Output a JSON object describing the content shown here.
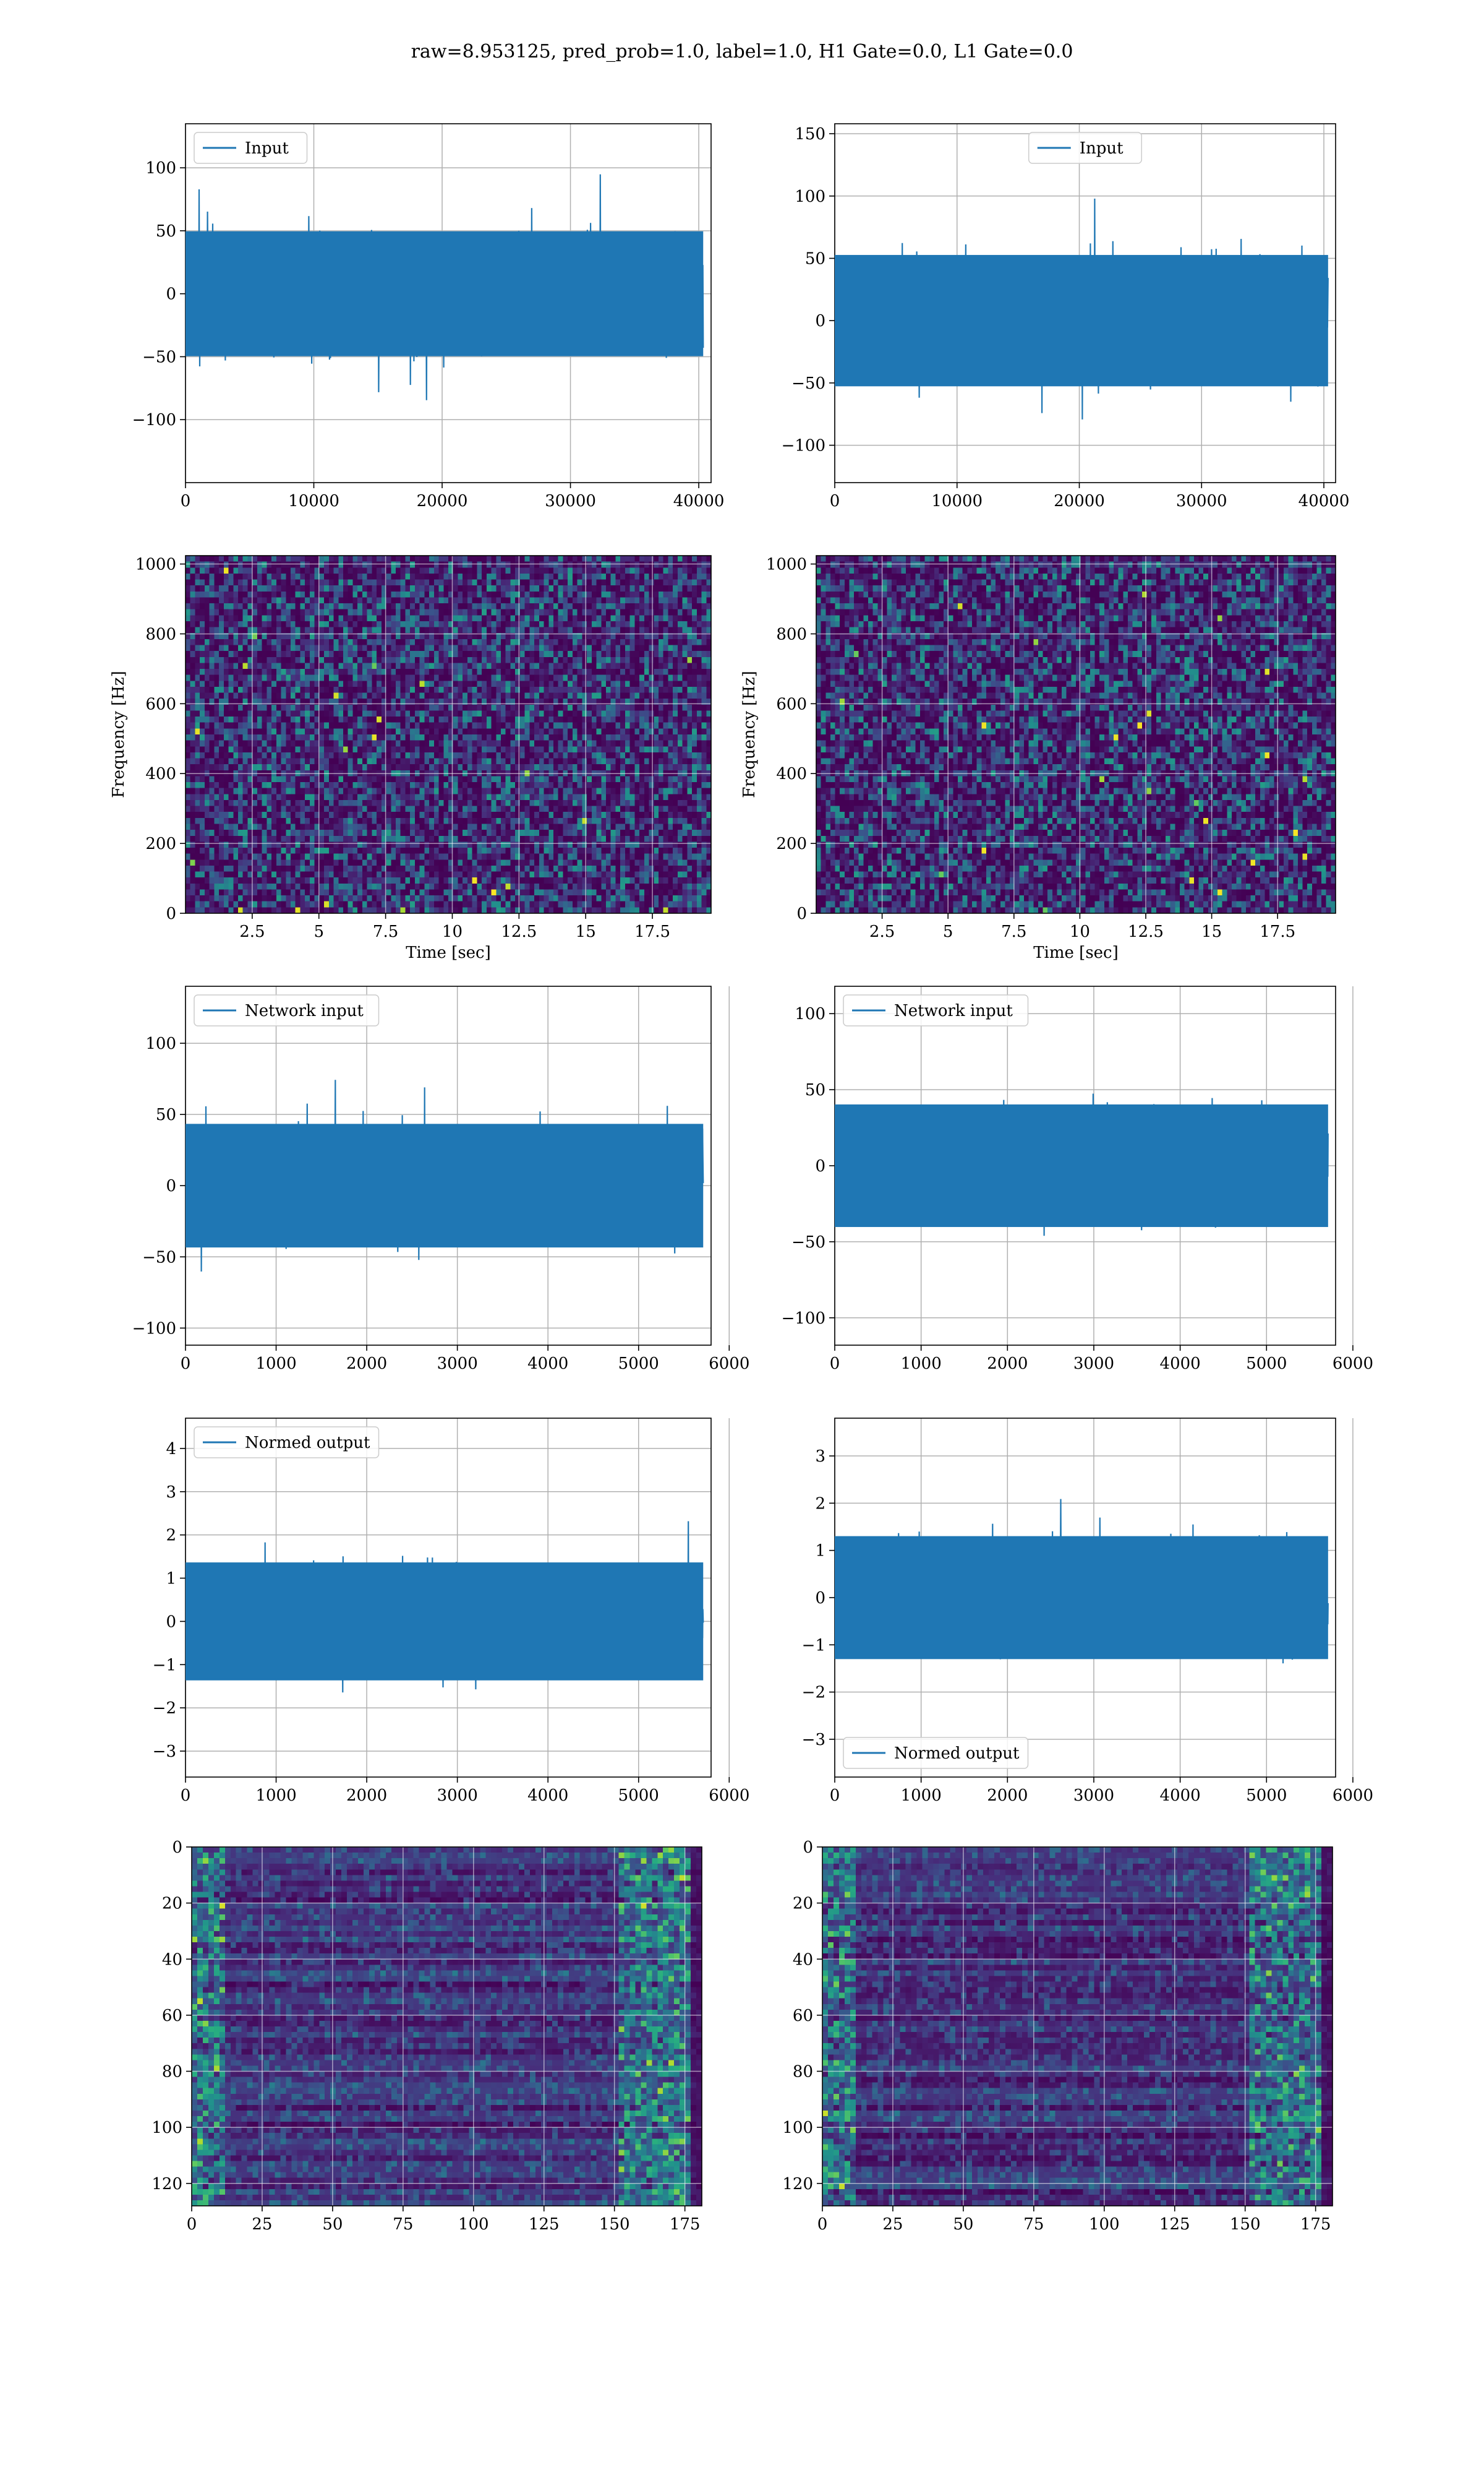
{
  "figure": {
    "suptitle": "raw=8.953125, pred_prob=1.0, label=1.0, H1 Gate=0.0, L1 Gate=0.0",
    "colors": {
      "line": "#1f77b4",
      "grid": "#b0b0b0",
      "axis": "#000000",
      "viridis": [
        "#440154",
        "#472d7b",
        "#3b528b",
        "#2c728e",
        "#21918c",
        "#28ae80",
        "#5ec962",
        "#addc30",
        "#fde725"
      ]
    }
  },
  "chart_data": [
    {
      "id": "h1-input",
      "type": "line",
      "legend": [
        "Input"
      ],
      "legend_loc": "upper left",
      "x_range": [
        0,
        40960
      ],
      "ylim": [
        -150,
        135
      ],
      "amplitude": 80,
      "xticks": [
        0,
        10000,
        20000,
        30000,
        40000
      ],
      "yticks": [
        -100,
        -50,
        0,
        50,
        100
      ],
      "grid": true,
      "xlabel": "",
      "ylabel": ""
    },
    {
      "id": "l1-input",
      "type": "line",
      "legend": [
        "Input"
      ],
      "legend_loc": "upper center",
      "x_range": [
        0,
        40960
      ],
      "ylim": [
        -130,
        158
      ],
      "amplitude": 85,
      "xticks": [
        0,
        10000,
        20000,
        30000,
        40000
      ],
      "yticks": [
        -100,
        -50,
        0,
        50,
        100,
        150
      ],
      "grid": true,
      "xlabel": "",
      "ylabel": ""
    },
    {
      "id": "h1-spectrogram",
      "type": "heatmap",
      "x_range": [
        0,
        19.7
      ],
      "ylim": [
        0,
        1024
      ],
      "xticks": [
        2.5,
        5.0,
        7.5,
        10.0,
        12.5,
        15.0,
        17.5
      ],
      "yticks": [
        0,
        200,
        400,
        600,
        800,
        1000
      ],
      "grid": true,
      "xlabel": "Time [sec]",
      "ylabel": "Frequency [Hz]",
      "colormap": "viridis"
    },
    {
      "id": "l1-spectrogram",
      "type": "heatmap",
      "x_range": [
        0,
        19.7
      ],
      "ylim": [
        0,
        1024
      ],
      "xticks": [
        2.5,
        5.0,
        7.5,
        10.0,
        12.5,
        15.0,
        17.5
      ],
      "yticks": [
        0,
        200,
        400,
        600,
        800,
        1000
      ],
      "grid": true,
      "xlabel": "Time [sec]",
      "ylabel": "Frequency [Hz]",
      "colormap": "viridis"
    },
    {
      "id": "h1-network-input",
      "type": "line",
      "legend": [
        "Network input"
      ],
      "legend_loc": "upper left",
      "x_range": [
        0,
        5800
      ],
      "ylim": [
        -112,
        140
      ],
      "amplitude": 70,
      "xticks": [
        0,
        1000,
        2000,
        3000,
        4000,
        5000,
        6000
      ],
      "yticks": [
        -100,
        -50,
        0,
        50,
        100
      ],
      "grid": true,
      "xlabel": "",
      "ylabel": ""
    },
    {
      "id": "l1-network-input",
      "type": "line",
      "legend": [
        "Network input"
      ],
      "legend_loc": "upper left",
      "x_range": [
        0,
        5800
      ],
      "ylim": [
        -118,
        118
      ],
      "amplitude": 65,
      "xticks": [
        0,
        1000,
        2000,
        3000,
        4000,
        5000,
        6000
      ],
      "yticks": [
        -100,
        -50,
        0,
        50,
        100
      ],
      "grid": true,
      "xlabel": "",
      "ylabel": ""
    },
    {
      "id": "h1-normed-output",
      "type": "line",
      "legend": [
        "Normed output"
      ],
      "legend_loc": "upper left",
      "x_range": [
        0,
        5800
      ],
      "ylim": [
        -3.6,
        4.7
      ],
      "amplitude": 2.2,
      "xticks": [
        0,
        1000,
        2000,
        3000,
        4000,
        5000,
        6000
      ],
      "yticks": [
        -3,
        -2,
        -1,
        0,
        1,
        2,
        3,
        4
      ],
      "grid": true,
      "xlabel": "",
      "ylabel": ""
    },
    {
      "id": "l1-normed-output",
      "type": "line",
      "legend": [
        "Normed output"
      ],
      "legend_loc": "lower left",
      "x_range": [
        0,
        5800
      ],
      "ylim": [
        -3.8,
        3.8
      ],
      "amplitude": 2.1,
      "xticks": [
        0,
        1000,
        2000,
        3000,
        4000,
        5000,
        6000
      ],
      "yticks": [
        -3,
        -2,
        -1,
        0,
        1,
        2,
        3
      ],
      "grid": true,
      "xlabel": "",
      "ylabel": ""
    },
    {
      "id": "h1-feature-map",
      "type": "heatmap",
      "x_range": [
        0,
        181
      ],
      "y_range": [
        0,
        128
      ],
      "y_inverted": true,
      "xticks": [
        0,
        25,
        50,
        75,
        100,
        125,
        150,
        175
      ],
      "yticks": [
        0,
        20,
        40,
        60,
        80,
        100,
        120
      ],
      "grid": true,
      "xlabel": "",
      "ylabel": "",
      "colormap": "viridis"
    },
    {
      "id": "l1-feature-map",
      "type": "heatmap",
      "x_range": [
        0,
        181
      ],
      "y_range": [
        0,
        128
      ],
      "y_inverted": true,
      "xticks": [
        0,
        25,
        50,
        75,
        100,
        125,
        150,
        175
      ],
      "yticks": [
        0,
        20,
        40,
        60,
        80,
        100,
        120
      ],
      "grid": true,
      "xlabel": "",
      "ylabel": "",
      "colormap": "viridis"
    }
  ]
}
